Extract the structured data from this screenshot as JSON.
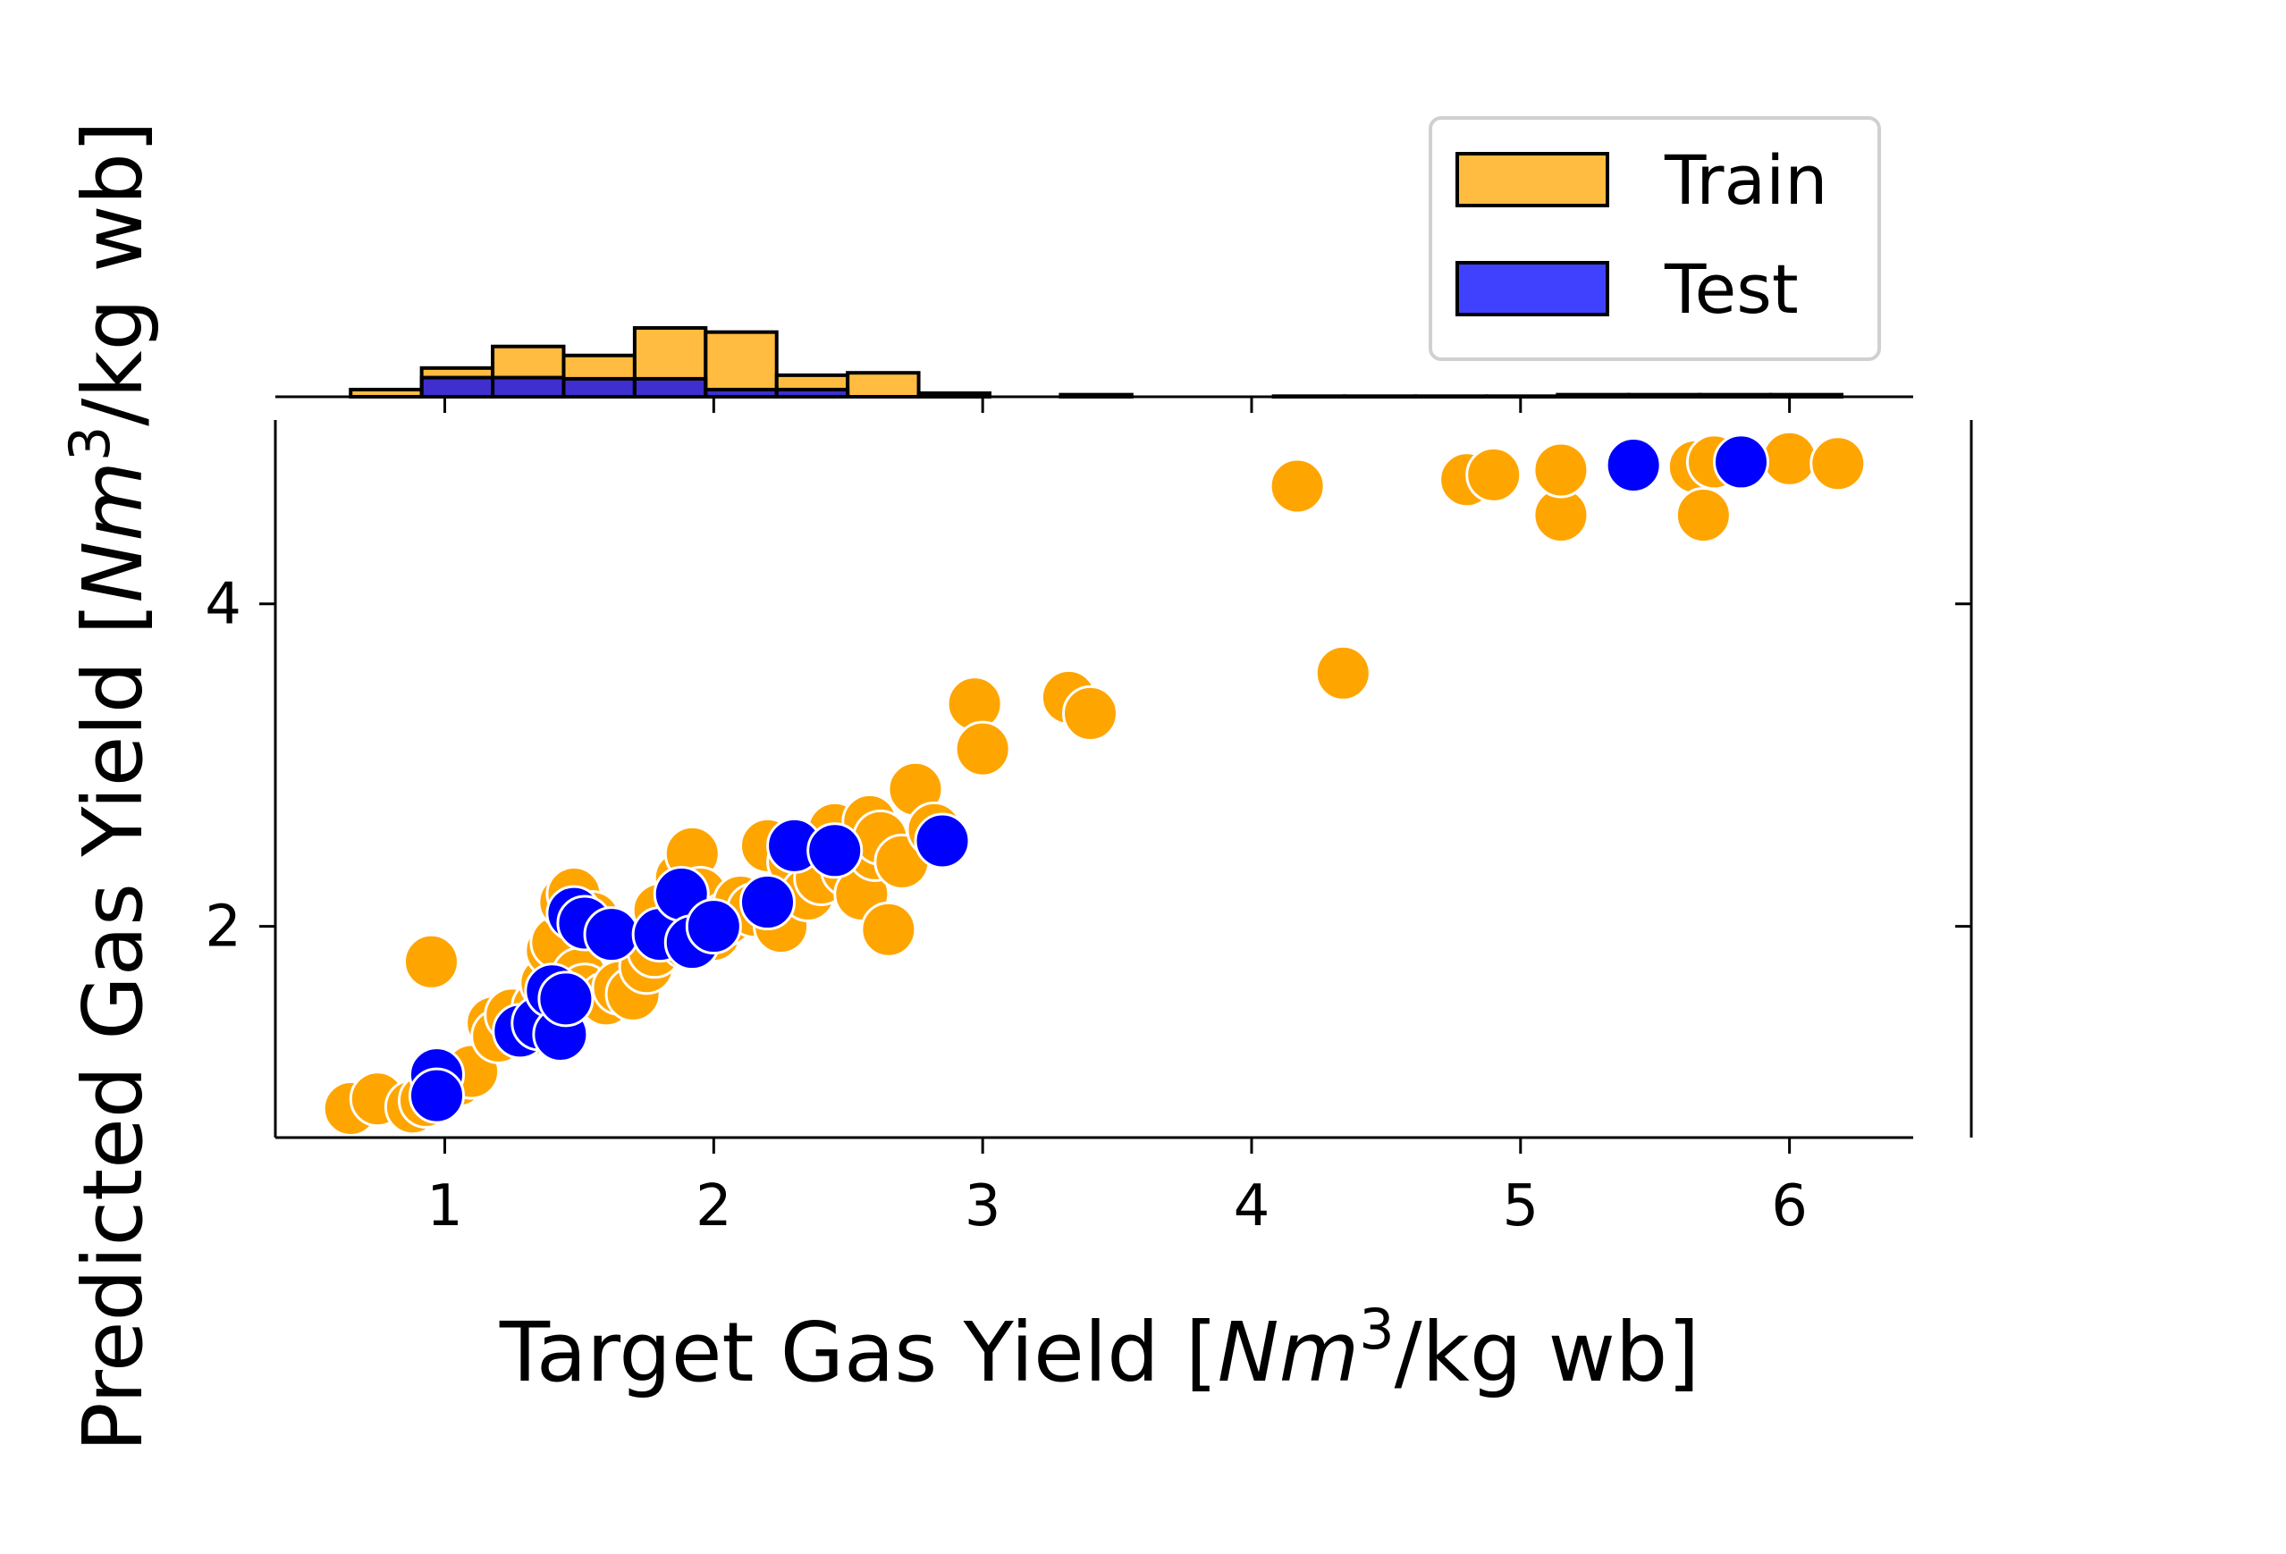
{
  "chart_data": {
    "type": "scatter",
    "title": "",
    "xlabel": {
      "pre": "Target Gas Yield [",
      "italic": "Nm",
      "sup": "3",
      "post": "/kg wb]"
    },
    "ylabel": {
      "pre": "Predicted Gas Yield [",
      "italic": "Nm",
      "sup": "3",
      "post": "/kg wb]"
    },
    "xlim": [
      0.37,
      6.46
    ],
    "ylim": [
      0.69,
      5.14
    ],
    "x_ticks": [
      1,
      2,
      3,
      4,
      5,
      6
    ],
    "x_tick_labels": [
      "1",
      "2",
      "3",
      "4",
      "5",
      "6"
    ],
    "y_ticks": [
      2,
      4
    ],
    "y_tick_labels": [
      "2",
      "4"
    ],
    "legend": {
      "position": "top-right",
      "entries": [
        "Train",
        "Test"
      ]
    },
    "colors": {
      "Train": "#FFA500",
      "Test": "#0000FF"
    },
    "series": [
      {
        "name": "Train",
        "points": [
          [
            0.65,
            0.87
          ],
          [
            0.75,
            0.93
          ],
          [
            0.88,
            0.88
          ],
          [
            0.93,
            0.92
          ],
          [
            0.95,
            1.78
          ],
          [
            1.0,
            1.0
          ],
          [
            1.05,
            1.05
          ],
          [
            1.1,
            1.1
          ],
          [
            1.18,
            1.4
          ],
          [
            1.2,
            1.32
          ],
          [
            1.25,
            1.45
          ],
          [
            1.3,
            1.35
          ],
          [
            1.35,
            1.5
          ],
          [
            1.38,
            1.65
          ],
          [
            1.4,
            1.85
          ],
          [
            1.42,
            1.9
          ],
          [
            1.45,
            2.15
          ],
          [
            1.48,
            2.2
          ],
          [
            1.5,
            1.7
          ],
          [
            1.52,
            1.6
          ],
          [
            1.55,
            2.05
          ],
          [
            1.6,
            1.55
          ],
          [
            1.65,
            1.62
          ],
          [
            1.7,
            1.58
          ],
          [
            1.75,
            1.75
          ],
          [
            1.78,
            1.85
          ],
          [
            1.8,
            2.1
          ],
          [
            1.85,
            1.95
          ],
          [
            1.88,
            2.3
          ],
          [
            1.9,
            1.9
          ],
          [
            1.92,
            2.45
          ],
          [
            1.95,
            2.2
          ],
          [
            2.0,
            1.95
          ],
          [
            2.05,
            2.05
          ],
          [
            2.1,
            2.15
          ],
          [
            2.15,
            2.1
          ],
          [
            2.2,
            2.5
          ],
          [
            2.25,
            2.0
          ],
          [
            2.3,
            2.4
          ],
          [
            2.35,
            2.2
          ],
          [
            2.4,
            2.3
          ],
          [
            2.45,
            2.6
          ],
          [
            2.5,
            2.35
          ],
          [
            2.55,
            2.2
          ],
          [
            2.58,
            2.65
          ],
          [
            2.6,
            2.45
          ],
          [
            2.62,
            2.55
          ],
          [
            2.65,
            1.98
          ],
          [
            2.7,
            2.4
          ],
          [
            2.75,
            2.85
          ],
          [
            2.82,
            2.6
          ],
          [
            2.97,
            3.38
          ],
          [
            3.0,
            3.1
          ],
          [
            3.32,
            3.42
          ],
          [
            3.4,
            3.32
          ],
          [
            4.17,
            4.73
          ],
          [
            4.34,
            3.57
          ],
          [
            4.8,
            4.77
          ],
          [
            4.9,
            4.8
          ],
          [
            5.15,
            4.55
          ],
          [
            5.15,
            4.83
          ],
          [
            5.65,
            4.85
          ],
          [
            5.68,
            4.55
          ],
          [
            5.72,
            4.88
          ],
          [
            6.0,
            4.9
          ],
          [
            6.18,
            4.87
          ]
        ]
      },
      {
        "name": "Test",
        "points": [
          [
            0.97,
            1.08
          ],
          [
            0.97,
            0.95
          ],
          [
            1.28,
            1.35
          ],
          [
            1.35,
            1.4
          ],
          [
            1.4,
            1.6
          ],
          [
            1.43,
            1.33
          ],
          [
            1.45,
            1.55
          ],
          [
            1.48,
            2.08
          ],
          [
            1.52,
            2.02
          ],
          [
            1.62,
            1.95
          ],
          [
            1.8,
            1.95
          ],
          [
            1.88,
            2.2
          ],
          [
            1.92,
            1.9
          ],
          [
            2.0,
            2.0
          ],
          [
            2.2,
            2.15
          ],
          [
            2.3,
            2.5
          ],
          [
            2.45,
            2.47
          ],
          [
            2.85,
            2.53
          ],
          [
            5.42,
            4.86
          ],
          [
            5.82,
            4.88
          ]
        ]
      }
    ],
    "histogram": {
      "bin_edges": [
        0.65,
        0.914,
        1.178,
        1.442,
        1.706,
        1.97,
        2.234,
        2.498,
        2.762,
        3.026,
        3.29,
        3.554,
        3.818,
        4.082,
        4.346,
        4.61,
        4.874,
        5.138,
        5.402,
        5.666,
        5.93,
        6.194
      ],
      "series": [
        {
          "name": "Train",
          "counts": [
            1.2,
            4.8,
            8.4,
            6.9,
            11.5,
            10.8,
            3.6,
            4.0,
            0.6,
            0,
            0.35,
            0,
            0,
            0.1,
            0.1,
            0.1,
            0.1,
            0.35,
            0.35,
            0.35,
            0.35
          ]
        },
        {
          "name": "Test",
          "counts": [
            0,
            3.2,
            3.2,
            3.0,
            3.0,
            1.2,
            1.2,
            0,
            0,
            0,
            0,
            0,
            0,
            0,
            0,
            0,
            0,
            0,
            0.25,
            0.25,
            0
          ]
        }
      ]
    }
  }
}
